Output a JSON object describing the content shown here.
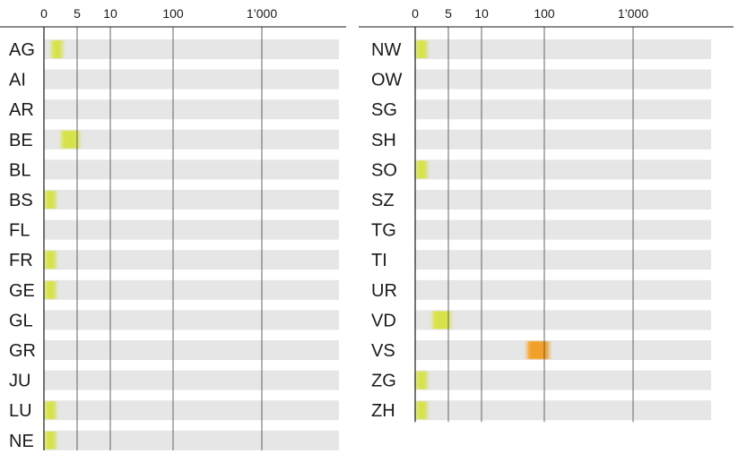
{
  "chart_data": [
    {
      "type": "bar",
      "scale": "log",
      "ticks": [
        "0",
        "5",
        "10",
        "100",
        "1’000"
      ],
      "tick_values": [
        0,
        5,
        10,
        100,
        1000
      ],
      "grid": true,
      "colors": {
        "track": "#e6e6e6",
        "low": "#d6e23a",
        "high": "#f39a12",
        "axis": "#1a1a1a",
        "grid": "#555555"
      },
      "categories": [
        "AG",
        "AI",
        "AR",
        "BE",
        "BL",
        "BS",
        "FL",
        "FR",
        "GE",
        "GL",
        "GR",
        "JU",
        "LU",
        "NE"
      ],
      "values": [
        2,
        0,
        0,
        4,
        0,
        1,
        0,
        1,
        1,
        0,
        0,
        0,
        1,
        1
      ]
    },
    {
      "type": "bar",
      "scale": "log",
      "ticks": [
        "0",
        "5",
        "10",
        "100",
        "1’000"
      ],
      "tick_values": [
        0,
        5,
        10,
        100,
        1000
      ],
      "grid": true,
      "colors": {
        "track": "#e6e6e6",
        "low": "#d6e23a",
        "high": "#f39a12",
        "axis": "#1a1a1a",
        "grid": "#555555"
      },
      "categories": [
        "NW",
        "OW",
        "SG",
        "SH",
        "SO",
        "SZ",
        "TG",
        "TI",
        "UR",
        "VD",
        "VS",
        "ZG",
        "ZH"
      ],
      "values": [
        1,
        0,
        0,
        0,
        1,
        0,
        0,
        0,
        0,
        4,
        80,
        1,
        1
      ]
    }
  ]
}
